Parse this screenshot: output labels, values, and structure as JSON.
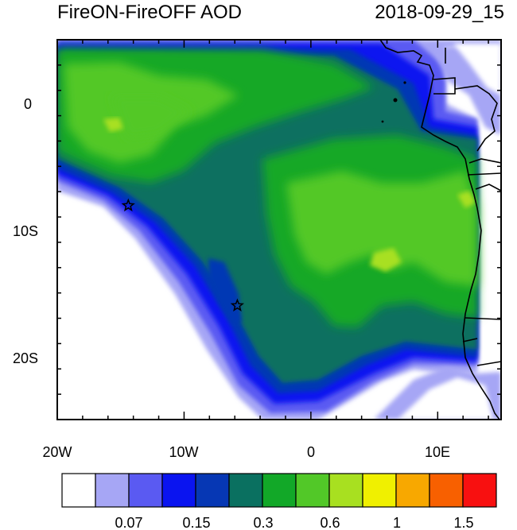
{
  "header": {
    "title": "FireON-FireOFF AOD",
    "timestamp": "2018-09-29_15"
  },
  "map": {
    "lon_range": [
      -20,
      15
    ],
    "lat_range": [
      -25,
      5
    ],
    "x_tick_labels": [
      "20W",
      "10W",
      "0",
      "10E"
    ],
    "y_tick_labels": [
      "0",
      "10S",
      "20S"
    ],
    "markers": [
      {
        "type": "star",
        "lon": -14.4,
        "lat": -8.1
      },
      {
        "type": "star",
        "lon": -5.8,
        "lat": -16.0
      }
    ]
  },
  "colorbar": {
    "colors": [
      "#ffffff",
      "#a6a6f5",
      "#5a5af2",
      "#0a14f0",
      "#0637b4",
      "#0a7060",
      "#12a828",
      "#52c828",
      "#a8e020",
      "#f0f000",
      "#f8a800",
      "#f86000",
      "#f81010"
    ],
    "labels": [
      "0.07",
      "0.15",
      "0.3",
      "0.6",
      "1",
      "1.5"
    ]
  }
}
